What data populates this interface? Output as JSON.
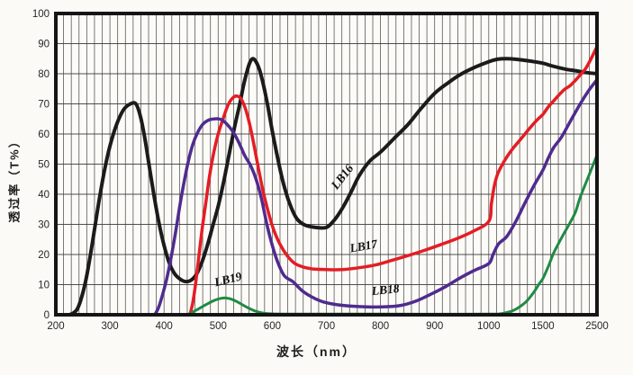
{
  "page": {
    "background": "#fbfaf6"
  },
  "chart_data": {
    "type": "line",
    "title": "",
    "xlabel": "波长（nm）",
    "ylabel": "透过率（T%）",
    "x_ticks": [
      200,
      300,
      400,
      500,
      600,
      700,
      800,
      900,
      1000,
      1500,
      2500
    ],
    "x_tick_labels": [
      "200",
      "300",
      "400",
      "500",
      "600",
      "700",
      "800",
      "900",
      "1000",
      "1500",
      "2500"
    ],
    "y_ticks": [
      0,
      10,
      20,
      30,
      40,
      50,
      60,
      70,
      80,
      90,
      100
    ],
    "ylim": [
      0,
      100
    ],
    "axis_note": "major x ticks equally spaced; scale compresses above 1000 nm",
    "grid": {
      "show": true,
      "color": "#3d3d3d",
      "vertical_subdivisions_per_major": 7,
      "horizontal_step": 10
    },
    "frame": {
      "border_color": "#151515",
      "plot_background": "#fcfbf7"
    },
    "series": [
      {
        "name": "LB16",
        "color": "#1b1b1b",
        "width": 4,
        "label": {
          "text": "LB16",
          "x_nm": 735,
          "y_pct": 45,
          "rotate": -52
        },
        "points": [
          [
            225,
            0
          ],
          [
            232,
            0.5
          ],
          [
            240,
            2
          ],
          [
            248,
            6
          ],
          [
            256,
            12
          ],
          [
            264,
            20
          ],
          [
            272,
            29
          ],
          [
            280,
            38
          ],
          [
            290,
            48
          ],
          [
            300,
            56
          ],
          [
            312,
            63
          ],
          [
            325,
            68
          ],
          [
            338,
            70
          ],
          [
            348,
            70
          ],
          [
            356,
            66
          ],
          [
            364,
            59
          ],
          [
            372,
            50
          ],
          [
            381,
            40
          ],
          [
            390,
            31
          ],
          [
            400,
            23
          ],
          [
            410,
            17
          ],
          [
            420,
            13.5
          ],
          [
            430,
            11.8
          ],
          [
            440,
            11
          ],
          [
            450,
            11.5
          ],
          [
            460,
            13.5
          ],
          [
            470,
            17.5
          ],
          [
            480,
            23
          ],
          [
            490,
            29.5
          ],
          [
            500,
            36
          ],
          [
            510,
            44
          ],
          [
            520,
            53
          ],
          [
            530,
            62
          ],
          [
            540,
            70
          ],
          [
            548,
            77
          ],
          [
            556,
            82.5
          ],
          [
            562,
            84.8
          ],
          [
            568,
            84.5
          ],
          [
            576,
            81.5
          ],
          [
            584,
            76
          ],
          [
            592,
            69
          ],
          [
            600,
            61
          ],
          [
            610,
            52
          ],
          [
            620,
            44
          ],
          [
            632,
            37
          ],
          [
            645,
            32
          ],
          [
            660,
            29.8
          ],
          [
            680,
            29
          ],
          [
            700,
            29
          ],
          [
            715,
            31.5
          ],
          [
            730,
            35.5
          ],
          [
            745,
            40.5
          ],
          [
            760,
            46
          ],
          [
            780,
            51
          ],
          [
            800,
            54
          ],
          [
            825,
            58.5
          ],
          [
            850,
            63
          ],
          [
            875,
            68.5
          ],
          [
            900,
            73.5
          ],
          [
            925,
            77
          ],
          [
            950,
            80
          ],
          [
            975,
            82.2
          ],
          [
            1000,
            84
          ],
          [
            1080,
            84.8
          ],
          [
            1160,
            85
          ],
          [
            1250,
            84.8
          ],
          [
            1380,
            84.2
          ],
          [
            1500,
            83.5
          ],
          [
            1650,
            82.7
          ],
          [
            1800,
            82
          ],
          [
            1950,
            81.4
          ],
          [
            2100,
            81
          ],
          [
            2300,
            80.4
          ],
          [
            2500,
            80
          ]
        ]
      },
      {
        "name": "LB17",
        "color": "#e41d25",
        "width": 3.5,
        "label": {
          "text": "LB17",
          "x_nm": 770,
          "y_pct": 21.5,
          "rotate": -10
        },
        "points": [
          [
            448,
            0
          ],
          [
            453,
            4
          ],
          [
            458,
            10
          ],
          [
            464,
            19
          ],
          [
            470,
            28
          ],
          [
            477,
            37
          ],
          [
            484,
            46
          ],
          [
            492,
            54
          ],
          [
            500,
            60
          ],
          [
            509,
            65
          ],
          [
            518,
            69.5
          ],
          [
            527,
            72
          ],
          [
            535,
            72.6
          ],
          [
            543,
            71.5
          ],
          [
            551,
            68
          ],
          [
            559,
            62.5
          ],
          [
            567,
            55.5
          ],
          [
            575,
            48
          ],
          [
            583,
            41
          ],
          [
            592,
            34.5
          ],
          [
            602,
            28.5
          ],
          [
            614,
            23.5
          ],
          [
            628,
            19.5
          ],
          [
            642,
            17
          ],
          [
            658,
            15.8
          ],
          [
            675,
            15.2
          ],
          [
            700,
            15
          ],
          [
            730,
            15
          ],
          [
            760,
            15.6
          ],
          [
            790,
            16.5
          ],
          [
            820,
            18
          ],
          [
            850,
            19.6
          ],
          [
            880,
            21.3
          ],
          [
            910,
            23.2
          ],
          [
            940,
            25.2
          ],
          [
            970,
            27.6
          ],
          [
            1000,
            31
          ],
          [
            1025,
            37
          ],
          [
            1050,
            42.5
          ],
          [
            1080,
            46.5
          ],
          [
            1120,
            49.5
          ],
          [
            1170,
            52.5
          ],
          [
            1230,
            55.5
          ],
          [
            1300,
            58.5
          ],
          [
            1380,
            62
          ],
          [
            1450,
            64.8
          ],
          [
            1500,
            66.5
          ],
          [
            1600,
            69
          ],
          [
            1700,
            71
          ],
          [
            1800,
            73
          ],
          [
            1900,
            74.8
          ],
          [
            2000,
            76
          ],
          [
            2100,
            77.8
          ],
          [
            2200,
            79.8
          ],
          [
            2300,
            82
          ],
          [
            2400,
            85.3
          ],
          [
            2500,
            89
          ]
        ]
      },
      {
        "name": "LB18",
        "color": "#4f2b8f",
        "width": 3.5,
        "label": {
          "text": "LB18",
          "x_nm": 810,
          "y_pct": 7,
          "rotate": -6
        },
        "points": [
          [
            383,
            0
          ],
          [
            390,
            2.5
          ],
          [
            397,
            6.5
          ],
          [
            405,
            12
          ],
          [
            413,
            19
          ],
          [
            421,
            27
          ],
          [
            429,
            36
          ],
          [
            437,
            44
          ],
          [
            445,
            51
          ],
          [
            453,
            56.5
          ],
          [
            462,
            60.5
          ],
          [
            472,
            63.3
          ],
          [
            482,
            64.6
          ],
          [
            492,
            65
          ],
          [
            502,
            65
          ],
          [
            510,
            64.3
          ],
          [
            520,
            62.5
          ],
          [
            530,
            60
          ],
          [
            540,
            56.5
          ],
          [
            550,
            52.5
          ],
          [
            560,
            49.5
          ],
          [
            570,
            45
          ],
          [
            580,
            38.5
          ],
          [
            590,
            30
          ],
          [
            600,
            23
          ],
          [
            610,
            17.5
          ],
          [
            622,
            13
          ],
          [
            638,
            11
          ],
          [
            655,
            8
          ],
          [
            672,
            6
          ],
          [
            690,
            4.5
          ],
          [
            710,
            3.6
          ],
          [
            735,
            3
          ],
          [
            765,
            2.7
          ],
          [
            800,
            2.6
          ],
          [
            835,
            3
          ],
          [
            865,
            4.5
          ],
          [
            895,
            7
          ],
          [
            920,
            9.3
          ],
          [
            945,
            12
          ],
          [
            972,
            14.6
          ],
          [
            1000,
            17
          ],
          [
            1040,
            20
          ],
          [
            1090,
            23.5
          ],
          [
            1167,
            26
          ],
          [
            1250,
            31
          ],
          [
            1333,
            37
          ],
          [
            1420,
            43
          ],
          [
            1500,
            48
          ],
          [
            1600,
            52
          ],
          [
            1700,
            55.5
          ],
          [
            1845,
            59
          ],
          [
            2000,
            64
          ],
          [
            2190,
            70
          ],
          [
            2350,
            74.5
          ],
          [
            2500,
            78
          ]
        ]
      },
      {
        "name": "LB19",
        "color": "#1f8a44",
        "width": 3,
        "label": {
          "text": "LB19",
          "x_nm": 520,
          "y_pct": 10.5,
          "rotate": -14
        },
        "points": [
          [
            443,
            0
          ],
          [
            452,
            0.8
          ],
          [
            462,
            1.8
          ],
          [
            472,
            2.8
          ],
          [
            482,
            3.8
          ],
          [
            492,
            4.7
          ],
          [
            502,
            5.3
          ],
          [
            512,
            5.6
          ],
          [
            522,
            5.3
          ],
          [
            532,
            4.6
          ],
          [
            542,
            3.6
          ],
          [
            552,
            2.6
          ],
          [
            562,
            1.7
          ],
          [
            572,
            1
          ],
          [
            585,
            0.5
          ],
          [
            600,
            0.3
          ],
          [
            650,
            0.2
          ],
          [
            800,
            0.2
          ],
          [
            1000,
            0.2
          ],
          [
            1100,
            0.3
          ],
          [
            1160,
            0.7
          ],
          [
            1220,
            1.3
          ],
          [
            1280,
            2.5
          ],
          [
            1350,
            4.5
          ],
          [
            1417,
            7.5
          ],
          [
            1470,
            10.5
          ],
          [
            1500,
            12
          ],
          [
            1600,
            16
          ],
          [
            1700,
            20.5
          ],
          [
            1845,
            25.5
          ],
          [
            2000,
            30.5
          ],
          [
            2100,
            34
          ],
          [
            2190,
            39
          ],
          [
            2300,
            44
          ],
          [
            2400,
            48.5
          ],
          [
            2500,
            53
          ]
        ]
      }
    ]
  }
}
